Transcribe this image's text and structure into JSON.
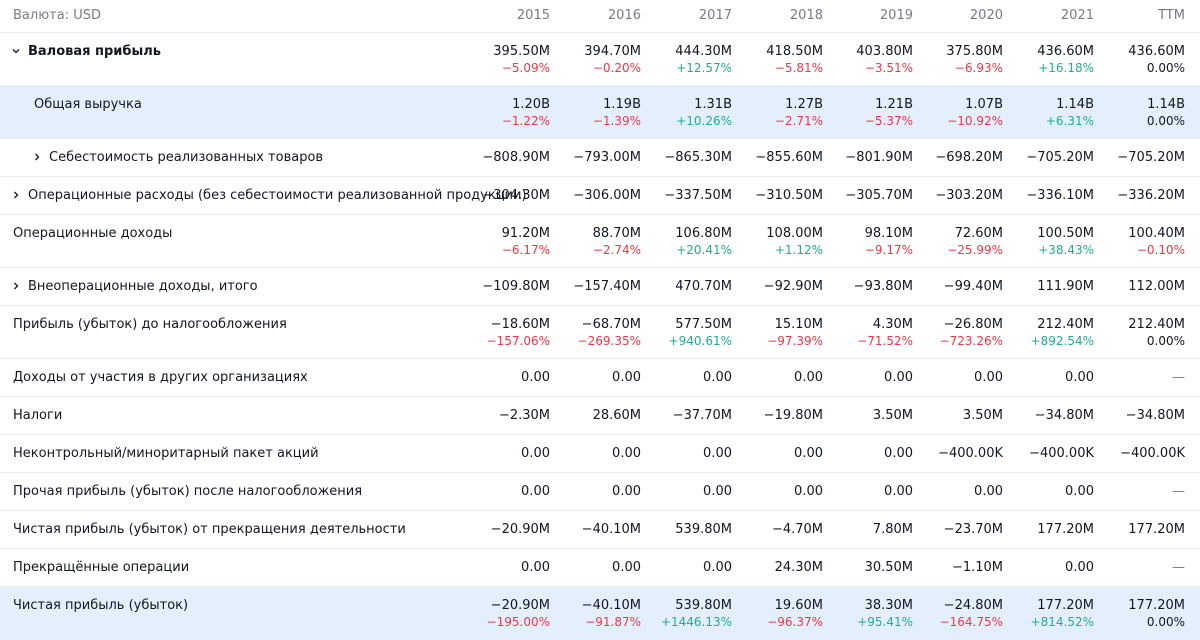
{
  "header": {
    "currency_label": "Валюта: USD",
    "columns": [
      "2015",
      "2016",
      "2017",
      "2018",
      "2019",
      "2020",
      "2021",
      "TTM"
    ]
  },
  "rows": [
    {
      "label": "Валовая прибыль",
      "values": [
        "395.50M",
        "394.70M",
        "444.30M",
        "418.50M",
        "403.80M",
        "375.80M",
        "436.60M",
        "436.60M"
      ],
      "pcts": [
        "−5.09%",
        "−0.20%",
        "+12.57%",
        "−5.81%",
        "−3.51%",
        "−6.93%",
        "+16.18%",
        "0.00%"
      ]
    },
    {
      "label": "Общая выручка",
      "values": [
        "1.20B",
        "1.19B",
        "1.31B",
        "1.27B",
        "1.21B",
        "1.07B",
        "1.14B",
        "1.14B"
      ],
      "pcts": [
        "−1.22%",
        "−1.39%",
        "+10.26%",
        "−2.71%",
        "−5.37%",
        "−10.92%",
        "+6.31%",
        "0.00%"
      ]
    },
    {
      "label": "Себестоимость реализованных товаров",
      "values": [
        "−808.90M",
        "−793.00M",
        "−865.30M",
        "−855.60M",
        "−801.90M",
        "−698.20M",
        "−705.20M",
        "−705.20M"
      ]
    },
    {
      "label": "Операционные расходы (без себестоимости реализованной продукции)",
      "values": [
        "−304.30M",
        "−306.00M",
        "−337.50M",
        "−310.50M",
        "−305.70M",
        "−303.20M",
        "−336.10M",
        "−336.20M"
      ]
    },
    {
      "label": "Операционные доходы",
      "values": [
        "91.20M",
        "88.70M",
        "106.80M",
        "108.00M",
        "98.10M",
        "72.60M",
        "100.50M",
        "100.40M"
      ],
      "pcts": [
        "−6.17%",
        "−2.74%",
        "+20.41%",
        "+1.12%",
        "−9.17%",
        "−25.99%",
        "+38.43%",
        "−0.10%"
      ]
    },
    {
      "label": "Внеоперационные доходы, итого",
      "values": [
        "−109.80M",
        "−157.40M",
        "470.70M",
        "−92.90M",
        "−93.80M",
        "−99.40M",
        "111.90M",
        "112.00M"
      ]
    },
    {
      "label": "Прибыль (убыток) до налогообложения",
      "values": [
        "−18.60M",
        "−68.70M",
        "577.50M",
        "15.10M",
        "4.30M",
        "−26.80M",
        "212.40M",
        "212.40M"
      ],
      "pcts": [
        "−157.06%",
        "−269.35%",
        "+940.61%",
        "−97.39%",
        "−71.52%",
        "−723.26%",
        "+892.54%",
        "0.00%"
      ]
    },
    {
      "label": "Доходы от участия в других организациях",
      "values": [
        "0.00",
        "0.00",
        "0.00",
        "0.00",
        "0.00",
        "0.00",
        "0.00",
        "—"
      ]
    },
    {
      "label": "Налоги",
      "values": [
        "−2.30M",
        "28.60M",
        "−37.70M",
        "−19.80M",
        "3.50M",
        "3.50M",
        "−34.80M",
        "−34.80M"
      ]
    },
    {
      "label": "Неконтрольный/миноритарный пакет акций",
      "values": [
        "0.00",
        "0.00",
        "0.00",
        "0.00",
        "0.00",
        "−400.00K",
        "−400.00K",
        "−400.00K"
      ]
    },
    {
      "label": "Прочая прибыль (убыток) после налогообложения",
      "values": [
        "0.00",
        "0.00",
        "0.00",
        "0.00",
        "0.00",
        "0.00",
        "0.00",
        "—"
      ]
    },
    {
      "label": "Чистая прибыль (убыток) от прекращения деятельности",
      "values": [
        "−20.90M",
        "−40.10M",
        "539.80M",
        "−4.70M",
        "7.80M",
        "−23.70M",
        "177.20M",
        "177.20M"
      ]
    },
    {
      "label": "Прекращённые операции",
      "values": [
        "0.00",
        "0.00",
        "0.00",
        "24.30M",
        "30.50M",
        "−1.10M",
        "0.00",
        "—"
      ]
    },
    {
      "label": "Чистая прибыль (убыток)",
      "values": [
        "−20.90M",
        "−40.10M",
        "539.80M",
        "19.60M",
        "38.30M",
        "−24.80M",
        "177.20M",
        "177.20M"
      ],
      "pcts": [
        "−195.00%",
        "−91.87%",
        "+1446.13%",
        "−96.37%",
        "+95.41%",
        "−164.75%",
        "+814.52%",
        "0.00%"
      ]
    }
  ]
}
